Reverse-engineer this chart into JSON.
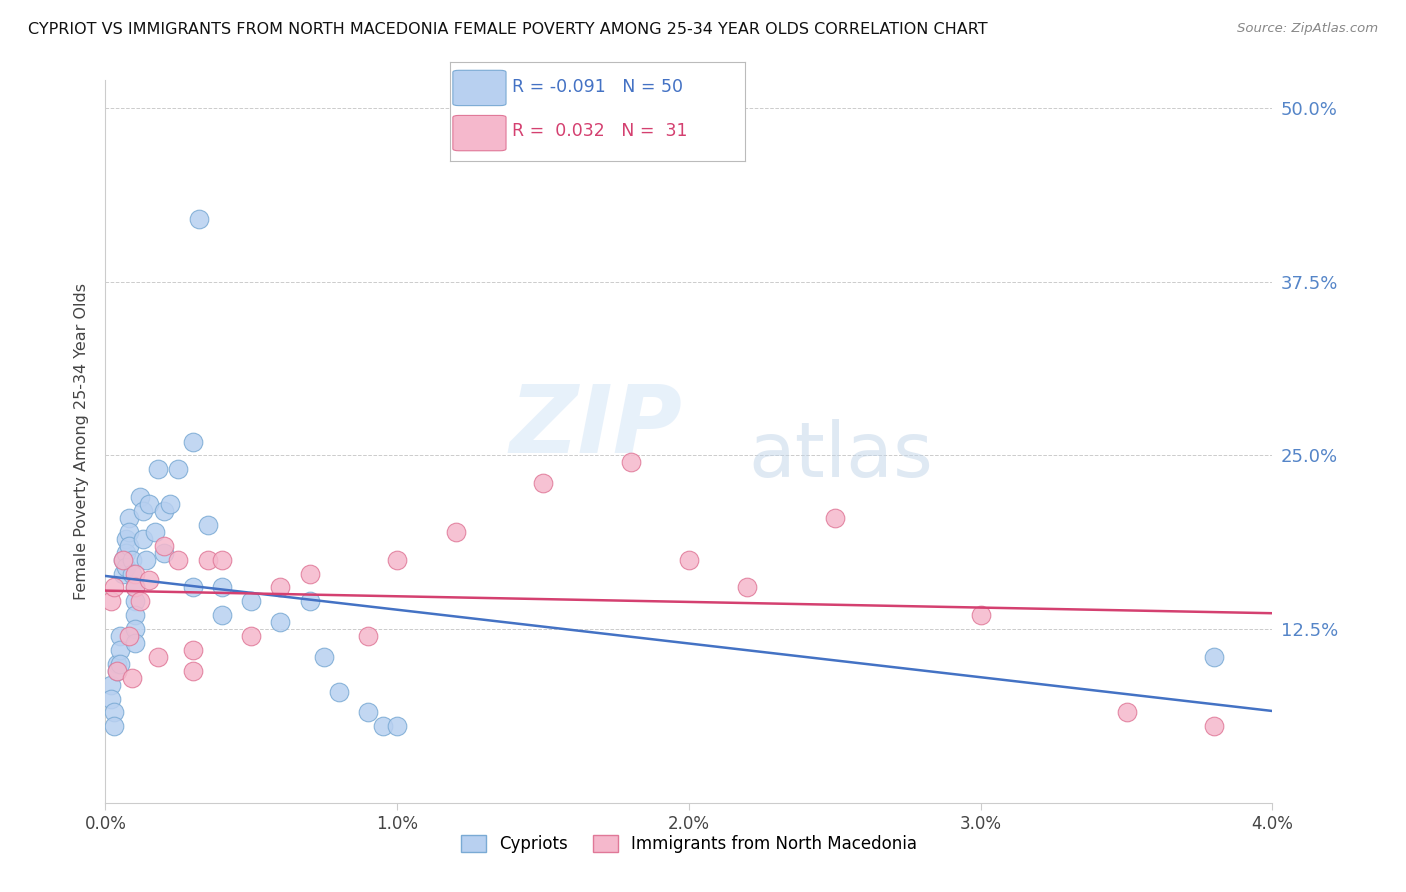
{
  "title": "CYPRIOT VS IMMIGRANTS FROM NORTH MACEDONIA FEMALE POVERTY AMONG 25-34 YEAR OLDS CORRELATION CHART",
  "source": "Source: ZipAtlas.com",
  "ylabel": "Female Poverty Among 25-34 Year Olds",
  "xlim": [
    0.0,
    0.04
  ],
  "ylim": [
    0.0,
    0.52
  ],
  "yticks": [
    0.0,
    0.125,
    0.25,
    0.375,
    0.5
  ],
  "ytick_labels": [
    "",
    "12.5%",
    "25.0%",
    "37.5%",
    "50.0%"
  ],
  "xticks": [
    0.0,
    0.01,
    0.02,
    0.03,
    0.04
  ],
  "xtick_labels": [
    "0.0%",
    "1.0%",
    "2.0%",
    "3.0%",
    "4.0%"
  ],
  "blue_color": "#b8d0f0",
  "blue_edge": "#7aaad4",
  "pink_color": "#f5b8cc",
  "pink_edge": "#e07898",
  "trendline_blue": "#4472c4",
  "trendline_pink": "#d44070",
  "legend_r_blue": "-0.091",
  "legend_n_blue": "50",
  "legend_r_pink": "0.032",
  "legend_n_pink": "31",
  "legend_label_blue": "Cypriots",
  "legend_label_pink": "Immigrants from North Macedonia",
  "right_tick_color": "#5585c8",
  "watermark_zip": "ZIP",
  "watermark_atlas": "atlas",
  "blue_x": [
    0.0002,
    0.0002,
    0.0003,
    0.0003,
    0.0004,
    0.0004,
    0.0005,
    0.0005,
    0.0005,
    0.0006,
    0.0006,
    0.0007,
    0.0007,
    0.0007,
    0.0008,
    0.0008,
    0.0008,
    0.0009,
    0.0009,
    0.001,
    0.001,
    0.001,
    0.001,
    0.001,
    0.0012,
    0.0013,
    0.0013,
    0.0014,
    0.0015,
    0.0017,
    0.0018,
    0.002,
    0.002,
    0.0022,
    0.0025,
    0.003,
    0.003,
    0.0032,
    0.0035,
    0.004,
    0.004,
    0.005,
    0.006,
    0.007,
    0.0075,
    0.008,
    0.009,
    0.0095,
    0.01,
    0.038
  ],
  "blue_y": [
    0.085,
    0.075,
    0.065,
    0.055,
    0.1,
    0.095,
    0.12,
    0.11,
    0.1,
    0.175,
    0.165,
    0.19,
    0.18,
    0.17,
    0.205,
    0.195,
    0.185,
    0.175,
    0.165,
    0.155,
    0.145,
    0.135,
    0.125,
    0.115,
    0.22,
    0.21,
    0.19,
    0.175,
    0.215,
    0.195,
    0.24,
    0.21,
    0.18,
    0.215,
    0.24,
    0.26,
    0.155,
    0.42,
    0.2,
    0.155,
    0.135,
    0.145,
    0.13,
    0.145,
    0.105,
    0.08,
    0.065,
    0.055,
    0.055,
    0.105
  ],
  "pink_x": [
    0.0002,
    0.0003,
    0.0004,
    0.0006,
    0.0008,
    0.0009,
    0.001,
    0.001,
    0.0012,
    0.0015,
    0.0018,
    0.002,
    0.0025,
    0.003,
    0.003,
    0.0035,
    0.004,
    0.005,
    0.006,
    0.007,
    0.009,
    0.01,
    0.012,
    0.015,
    0.018,
    0.02,
    0.022,
    0.025,
    0.03,
    0.035,
    0.038
  ],
  "pink_y": [
    0.145,
    0.155,
    0.095,
    0.175,
    0.12,
    0.09,
    0.165,
    0.155,
    0.145,
    0.16,
    0.105,
    0.185,
    0.175,
    0.11,
    0.095,
    0.175,
    0.175,
    0.12,
    0.155,
    0.165,
    0.12,
    0.175,
    0.195,
    0.23,
    0.245,
    0.175,
    0.155,
    0.205,
    0.135,
    0.065,
    0.055
  ]
}
